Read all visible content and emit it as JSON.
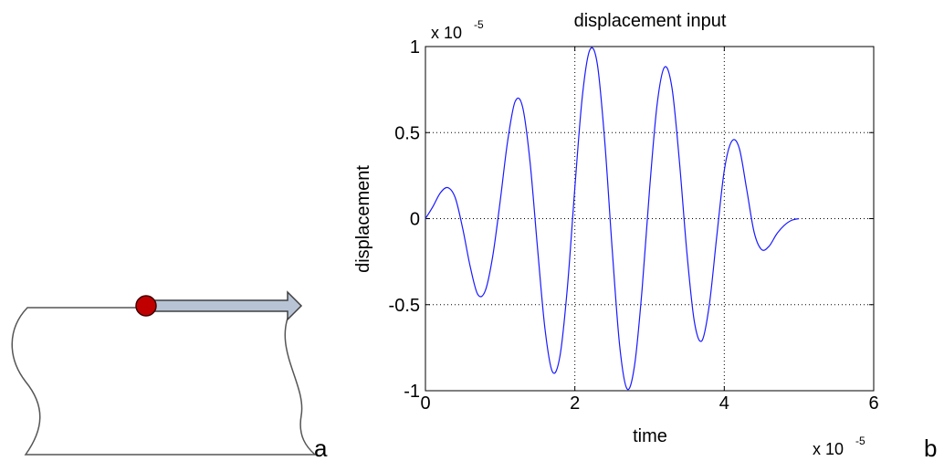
{
  "panels": {
    "a_label": "a",
    "b_label": "b"
  },
  "colors": {
    "signal": "#1a1aff",
    "marker_fill": "#c00000",
    "arrow_fill": "#b8c4d6",
    "outline": "#555555"
  },
  "chart_data": {
    "type": "line",
    "title": "displacement input",
    "xlabel": "time",
    "ylabel": "displacement",
    "x_exponent": {
      "base": "x 10",
      "exp": "-5"
    },
    "y_exponent": {
      "base": "x 10",
      "exp": "-5"
    },
    "xlim": [
      0,
      6
    ],
    "ylim": [
      -1,
      1
    ],
    "xticks": [
      0,
      2,
      4,
      6
    ],
    "xtick_labels": [
      "0",
      "2",
      "4",
      "6"
    ],
    "yticks": [
      -1,
      -0.5,
      0,
      0.5,
      1
    ],
    "ytick_labels": [
      "-1",
      "-0.5",
      "0",
      "0.5",
      "1"
    ],
    "grid": true,
    "series": [
      {
        "x": [
          0,
          0.1,
          0.2,
          0.3,
          0.4,
          0.5,
          0.6,
          0.7,
          0.8,
          0.9,
          1.0,
          1.1,
          1.2,
          1.3,
          1.4,
          1.5,
          1.6,
          1.7,
          1.8,
          1.9,
          2.0,
          2.1,
          2.2,
          2.3,
          2.4,
          2.5,
          2.6,
          2.7,
          2.8,
          2.9,
          3.0,
          3.1,
          3.2,
          3.3,
          3.4,
          3.5,
          3.6,
          3.7,
          3.8,
          3.9,
          4.0,
          4.1,
          4.2,
          4.3,
          4.4,
          4.5,
          4.6,
          4.7,
          4.8,
          4.9,
          5.0
        ],
        "y": [
          0,
          0.07,
          0.15,
          0.18,
          0.12,
          -0.06,
          -0.28,
          -0.44,
          -0.42,
          -0.22,
          0.1,
          0.45,
          0.68,
          0.65,
          0.33,
          -0.17,
          -0.64,
          -0.89,
          -0.8,
          -0.4,
          0.18,
          0.71,
          0.98,
          0.9,
          0.45,
          -0.18,
          -0.74,
          -0.99,
          -0.85,
          -0.41,
          0.17,
          0.66,
          0.88,
          0.76,
          0.33,
          -0.2,
          -0.6,
          -0.71,
          -0.5,
          -0.1,
          0.28,
          0.45,
          0.41,
          0.17,
          -0.08,
          -0.18,
          -0.16,
          -0.09,
          -0.04,
          -0.01,
          0
        ]
      }
    ]
  }
}
